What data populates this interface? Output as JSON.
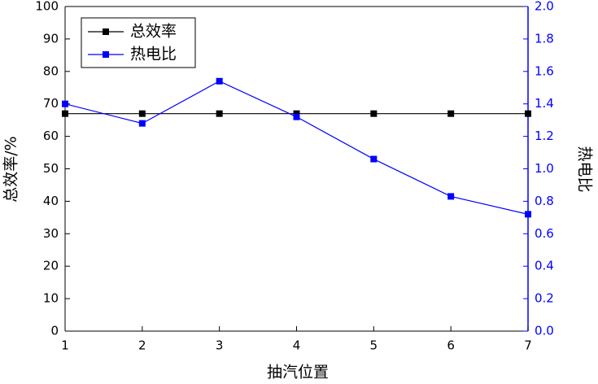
{
  "chart_data": {
    "type": "line",
    "x_label": "抽汽位置",
    "y_label": "总效率/%",
    "y2_label": "热电比",
    "x": [
      1,
      2,
      3,
      4,
      5,
      6,
      7
    ],
    "xlim": [
      1,
      7
    ],
    "xticks": [
      1,
      2,
      3,
      4,
      5,
      6,
      7
    ],
    "ylim": [
      0,
      100
    ],
    "yticks": [
      0,
      10,
      20,
      30,
      40,
      50,
      60,
      70,
      80,
      90,
      100
    ],
    "y2lim": [
      0,
      2
    ],
    "y2ticks": [
      {
        "value": 0,
        "label": "0.0"
      },
      0.2,
      0.4,
      0.6,
      0.8,
      {
        "value": 1,
        "label": "1.0"
      },
      1.2,
      1.4,
      1.6,
      1.8,
      {
        "value": 2,
        "label": "2.0"
      }
    ],
    "y2color": "#0000ff",
    "legend": "upper left",
    "series": [
      {
        "name": "总效率",
        "color": "#000000",
        "values": [
          67,
          67,
          67,
          67,
          67,
          67,
          67
        ]
      },
      {
        "name": "热电比",
        "color": "#0000ff",
        "axis": "y2",
        "values": [
          1.4,
          1.28,
          1.54,
          1.32,
          1.06,
          0.83,
          0.72
        ]
      }
    ]
  }
}
